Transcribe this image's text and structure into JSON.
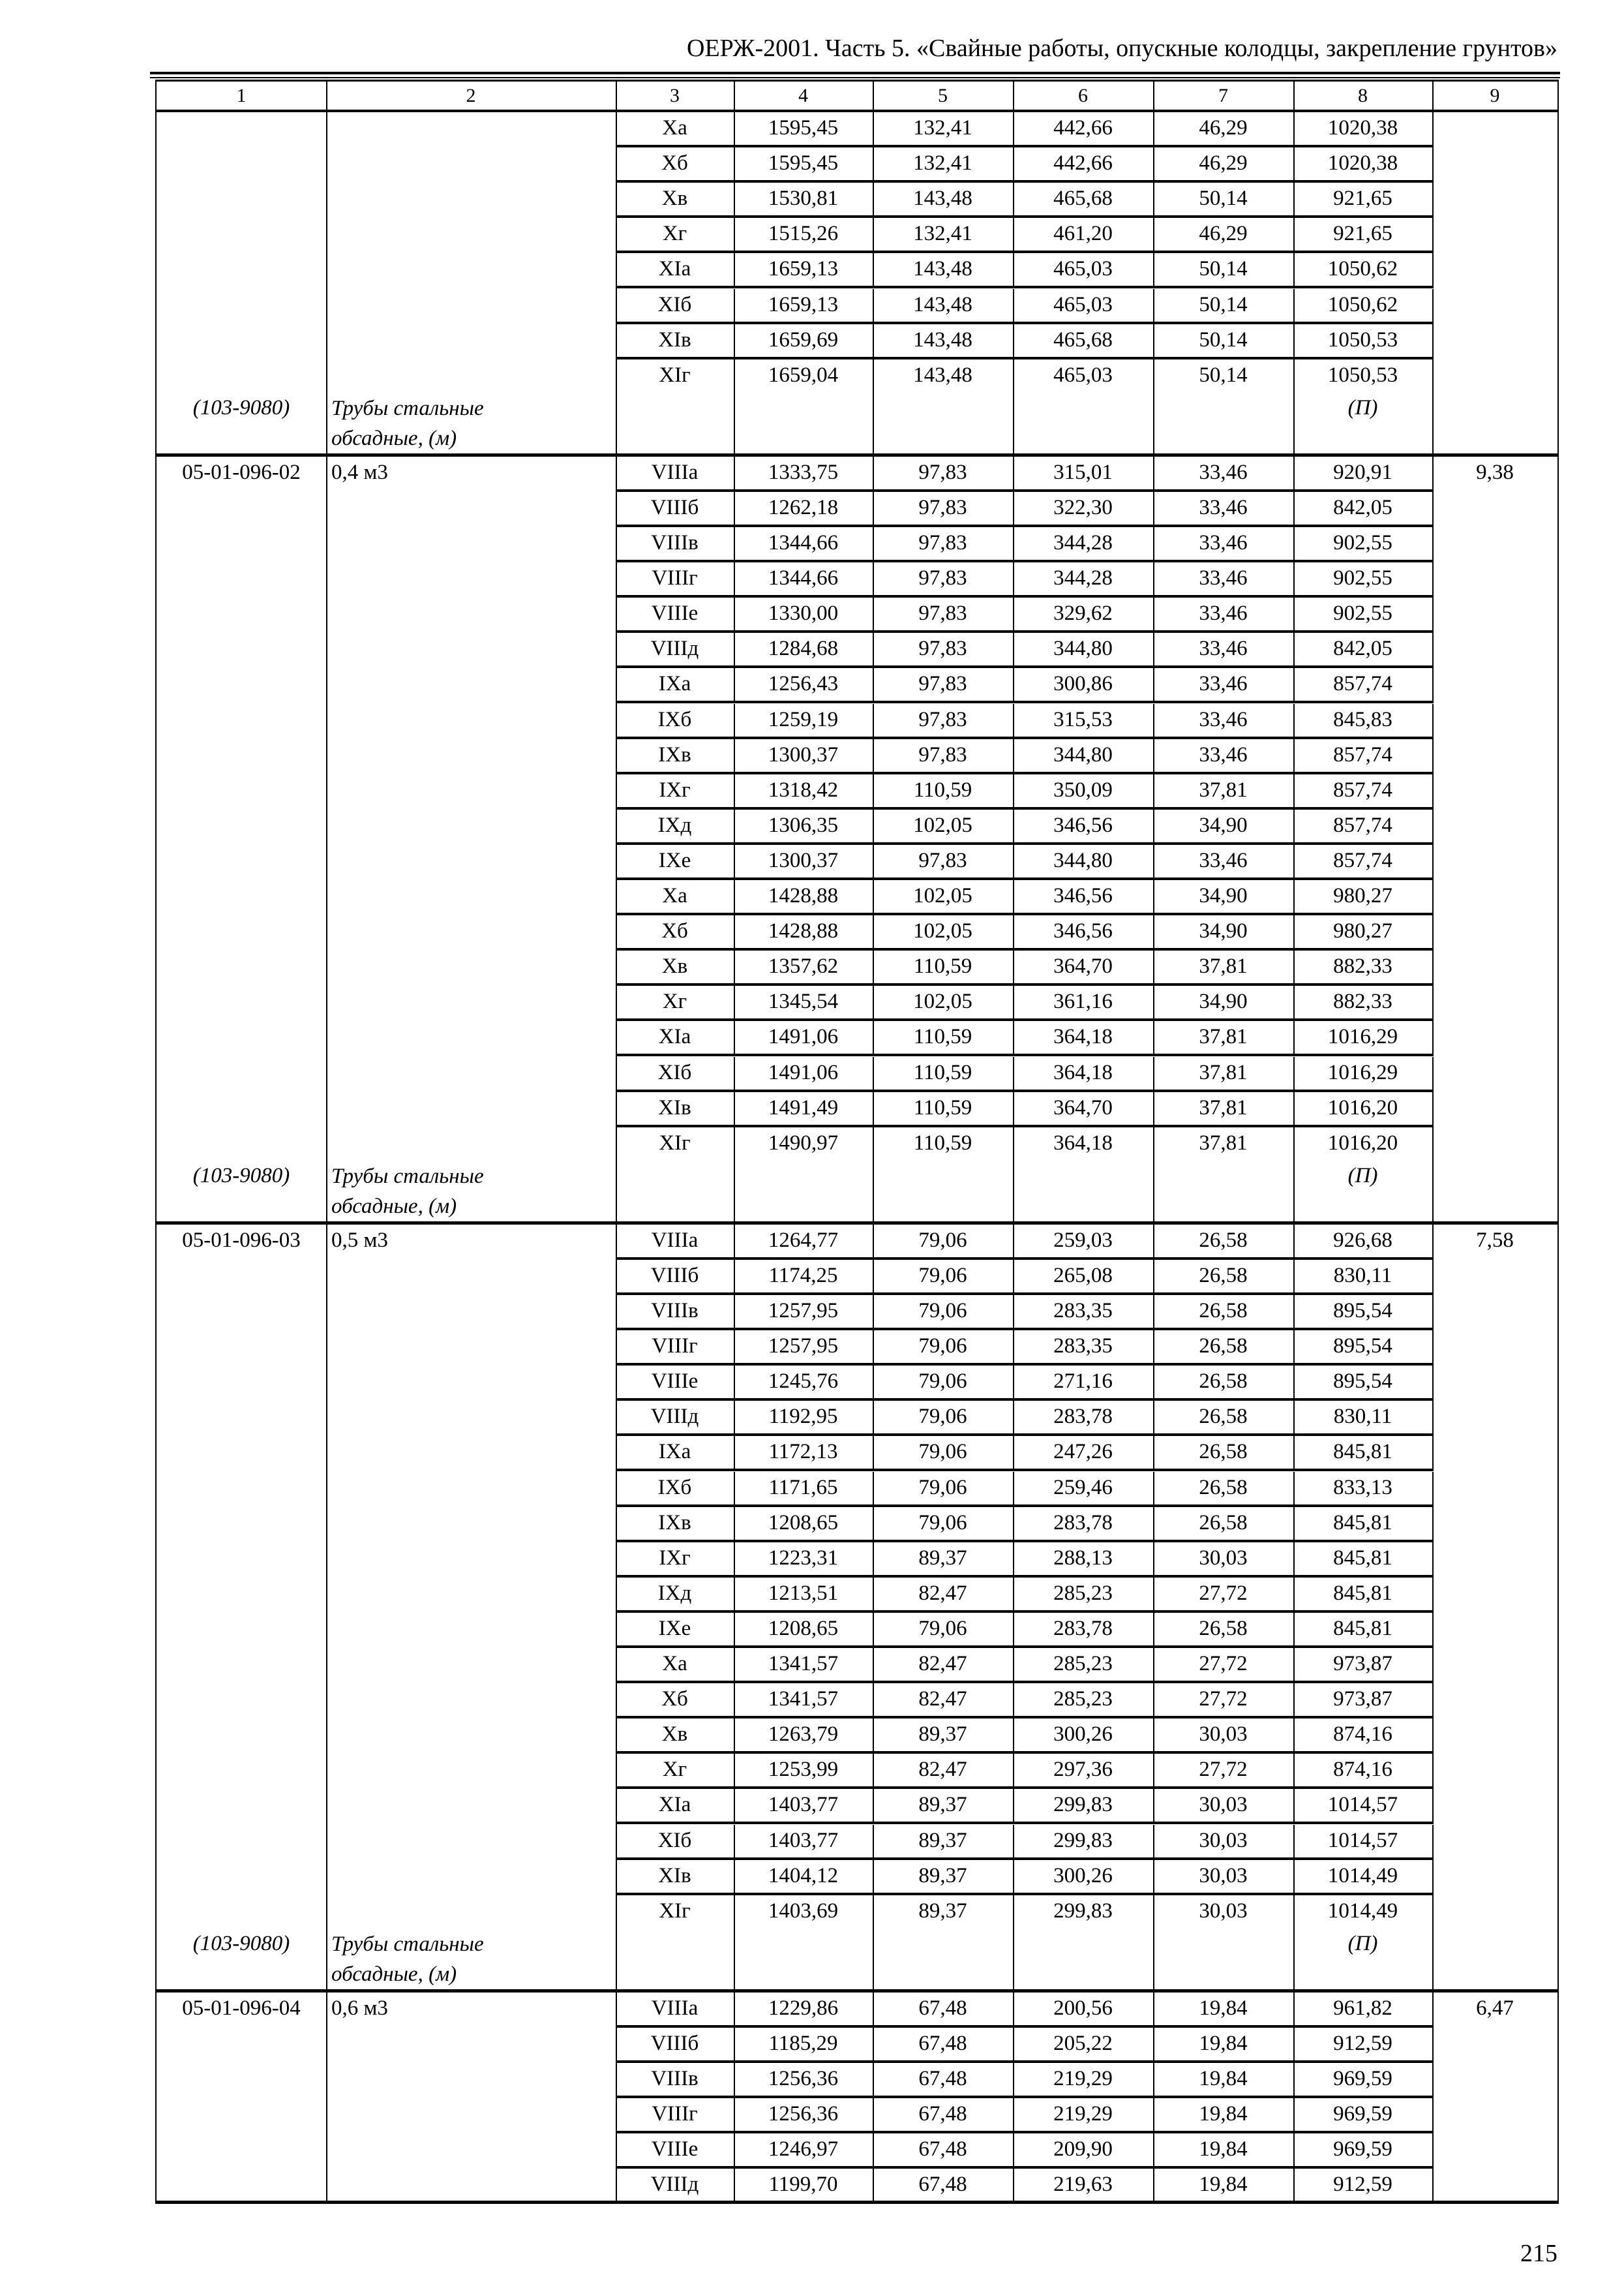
{
  "header": {
    "title": "ОЕРЖ-2001. Часть 5. «Свайные работы, опускные колодцы, закрепление грунтов»"
  },
  "table": {
    "column_numbers": [
      "1",
      "2",
      "3",
      "4",
      "5",
      "6",
      "7",
      "8",
      "9"
    ],
    "sections": [
      {
        "code": "",
        "size": "",
        "col9": "",
        "rows": [
          [
            "Xa",
            "1595,45",
            "132,41",
            "442,66",
            "46,29",
            "1020,38"
          ],
          [
            "Xб",
            "1595,45",
            "132,41",
            "442,66",
            "46,29",
            "1020,38"
          ],
          [
            "Xв",
            "1530,81",
            "143,48",
            "465,68",
            "50,14",
            "921,65"
          ],
          [
            "Xг",
            "1515,26",
            "132,41",
            "461,20",
            "46,29",
            "921,65"
          ],
          [
            "XIa",
            "1659,13",
            "143,48",
            "465,03",
            "50,14",
            "1050,62"
          ],
          [
            "XIб",
            "1659,13",
            "143,48",
            "465,03",
            "50,14",
            "1050,62"
          ],
          [
            "XIв",
            "1659,69",
            "143,48",
            "465,68",
            "50,14",
            "1050,53"
          ],
          [
            "XIг",
            "1659,04",
            "143,48",
            "465,03",
            "50,14",
            "1050,53"
          ]
        ],
        "footer": {
          "code": "(103-9080)",
          "name": "Трубы стальные обсадные, (м)",
          "col8": "(П)"
        }
      },
      {
        "code": "05-01-096-02",
        "size": "0,4 м3",
        "col9": "9,38",
        "rows": [
          [
            "VIIIa",
            "1333,75",
            "97,83",
            "315,01",
            "33,46",
            "920,91"
          ],
          [
            "VIIIб",
            "1262,18",
            "97,83",
            "322,30",
            "33,46",
            "842,05"
          ],
          [
            "VIIIв",
            "1344,66",
            "97,83",
            "344,28",
            "33,46",
            "902,55"
          ],
          [
            "VIIIг",
            "1344,66",
            "97,83",
            "344,28",
            "33,46",
            "902,55"
          ],
          [
            "VIIIe",
            "1330,00",
            "97,83",
            "329,62",
            "33,46",
            "902,55"
          ],
          [
            "VIIIд",
            "1284,68",
            "97,83",
            "344,80",
            "33,46",
            "842,05"
          ],
          [
            "IXa",
            "1256,43",
            "97,83",
            "300,86",
            "33,46",
            "857,74"
          ],
          [
            "IXб",
            "1259,19",
            "97,83",
            "315,53",
            "33,46",
            "845,83"
          ],
          [
            "IXв",
            "1300,37",
            "97,83",
            "344,80",
            "33,46",
            "857,74"
          ],
          [
            "IXг",
            "1318,42",
            "110,59",
            "350,09",
            "37,81",
            "857,74"
          ],
          [
            "IXд",
            "1306,35",
            "102,05",
            "346,56",
            "34,90",
            "857,74"
          ],
          [
            "IXe",
            "1300,37",
            "97,83",
            "344,80",
            "33,46",
            "857,74"
          ],
          [
            "Xa",
            "1428,88",
            "102,05",
            "346,56",
            "34,90",
            "980,27"
          ],
          [
            "Xб",
            "1428,88",
            "102,05",
            "346,56",
            "34,90",
            "980,27"
          ],
          [
            "Xв",
            "1357,62",
            "110,59",
            "364,70",
            "37,81",
            "882,33"
          ],
          [
            "Xг",
            "1345,54",
            "102,05",
            "361,16",
            "34,90",
            "882,33"
          ],
          [
            "XIa",
            "1491,06",
            "110,59",
            "364,18",
            "37,81",
            "1016,29"
          ],
          [
            "XIб",
            "1491,06",
            "110,59",
            "364,18",
            "37,81",
            "1016,29"
          ],
          [
            "XIв",
            "1491,49",
            "110,59",
            "364,70",
            "37,81",
            "1016,20"
          ],
          [
            "XIг",
            "1490,97",
            "110,59",
            "364,18",
            "37,81",
            "1016,20"
          ]
        ],
        "footer": {
          "code": "(103-9080)",
          "name": "Трубы стальные обсадные, (м)",
          "col8": "(П)"
        }
      },
      {
        "code": "05-01-096-03",
        "size": "0,5 м3",
        "col9": "7,58",
        "rows": [
          [
            "VIIIa",
            "1264,77",
            "79,06",
            "259,03",
            "26,58",
            "926,68"
          ],
          [
            "VIIIб",
            "1174,25",
            "79,06",
            "265,08",
            "26,58",
            "830,11"
          ],
          [
            "VIIIв",
            "1257,95",
            "79,06",
            "283,35",
            "26,58",
            "895,54"
          ],
          [
            "VIIIг",
            "1257,95",
            "79,06",
            "283,35",
            "26,58",
            "895,54"
          ],
          [
            "VIIIe",
            "1245,76",
            "79,06",
            "271,16",
            "26,58",
            "895,54"
          ],
          [
            "VIIIд",
            "1192,95",
            "79,06",
            "283,78",
            "26,58",
            "830,11"
          ],
          [
            "IXa",
            "1172,13",
            "79,06",
            "247,26",
            "26,58",
            "845,81"
          ],
          [
            "IXб",
            "1171,65",
            "79,06",
            "259,46",
            "26,58",
            "833,13"
          ],
          [
            "IXв",
            "1208,65",
            "79,06",
            "283,78",
            "26,58",
            "845,81"
          ],
          [
            "IXг",
            "1223,31",
            "89,37",
            "288,13",
            "30,03",
            "845,81"
          ],
          [
            "IXд",
            "1213,51",
            "82,47",
            "285,23",
            "27,72",
            "845,81"
          ],
          [
            "IXe",
            "1208,65",
            "79,06",
            "283,78",
            "26,58",
            "845,81"
          ],
          [
            "Xa",
            "1341,57",
            "82,47",
            "285,23",
            "27,72",
            "973,87"
          ],
          [
            "Xб",
            "1341,57",
            "82,47",
            "285,23",
            "27,72",
            "973,87"
          ],
          [
            "Xв",
            "1263,79",
            "89,37",
            "300,26",
            "30,03",
            "874,16"
          ],
          [
            "Xг",
            "1253,99",
            "82,47",
            "297,36",
            "27,72",
            "874,16"
          ],
          [
            "XIa",
            "1403,77",
            "89,37",
            "299,83",
            "30,03",
            "1014,57"
          ],
          [
            "XIб",
            "1403,77",
            "89,37",
            "299,83",
            "30,03",
            "1014,57"
          ],
          [
            "XIв",
            "1404,12",
            "89,37",
            "300,26",
            "30,03",
            "1014,49"
          ],
          [
            "XIг",
            "1403,69",
            "89,37",
            "299,83",
            "30,03",
            "1014,49"
          ]
        ],
        "footer": {
          "code": "(103-9080)",
          "name": "Трубы стальные обсадные, (м)",
          "col8": "(П)"
        }
      },
      {
        "code": "05-01-096-04",
        "size": "0,6 м3",
        "col9": "6,47",
        "rows": [
          [
            "VIIIa",
            "1229,86",
            "67,48",
            "200,56",
            "19,84",
            "961,82"
          ],
          [
            "VIIIб",
            "1185,29",
            "67,48",
            "205,22",
            "19,84",
            "912,59"
          ],
          [
            "VIIIв",
            "1256,36",
            "67,48",
            "219,29",
            "19,84",
            "969,59"
          ],
          [
            "VIIIг",
            "1256,36",
            "67,48",
            "219,29",
            "19,84",
            "969,59"
          ],
          [
            "VIIIe",
            "1246,97",
            "67,48",
            "209,90",
            "19,84",
            "969,59"
          ],
          [
            "VIIIд",
            "1199,70",
            "67,48",
            "219,63",
            "19,84",
            "912,59"
          ]
        ]
      }
    ]
  },
  "page_number": "215"
}
